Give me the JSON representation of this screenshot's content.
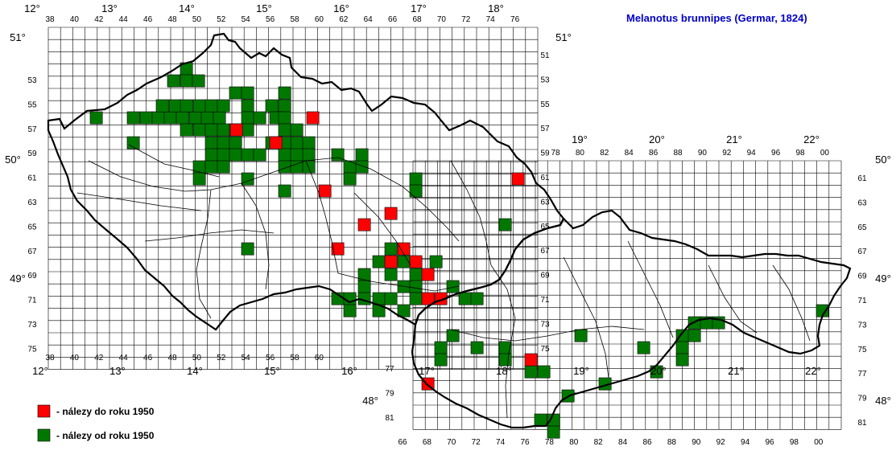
{
  "title": "Melanotus brunnipes (Germar, 1824)",
  "colors": {
    "pre1950": "#ff0000",
    "post1950": "#007800",
    "grid": "#000000",
    "border": "#000000"
  },
  "legend": [
    {
      "key": "pre1950",
      "label": "- nálezy do roku 1950"
    },
    {
      "key": "post1950",
      "label": "- nálezy od roku 1950"
    }
  ],
  "grid": {
    "column_labels_cz": [
      "38",
      "40",
      "42",
      "44",
      "46",
      "48",
      "50",
      "52",
      "54",
      "56",
      "58",
      "60",
      "62",
      "64",
      "66",
      "68",
      "70",
      "72",
      "74",
      "76"
    ],
    "column_labels_sk": [
      "66",
      "68",
      "70",
      "72",
      "74",
      "76",
      "78",
      "80",
      "82",
      "84",
      "86",
      "88",
      "90",
      "92",
      "94",
      "96",
      "98",
      "00"
    ],
    "column_labels_sk_top": [
      "78",
      "80",
      "82",
      "84",
      "86",
      "88",
      "90",
      "92",
      "94",
      "96",
      "98",
      "00"
    ],
    "row_labels_cz": [
      "51",
      "53",
      "55",
      "57",
      "59",
      "61",
      "63",
      "65",
      "67",
      "69",
      "71",
      "73",
      "75"
    ],
    "row_labels_sk": [
      "61",
      "63",
      "65",
      "67",
      "69",
      "71",
      "73",
      "75",
      "77",
      "79",
      "81"
    ],
    "row_labels_cz_left": [
      "53",
      "55",
      "57",
      "59",
      "61",
      "63",
      "65",
      "67",
      "69",
      "71",
      "73",
      "75"
    ]
  },
  "longitude_labels_top": [
    "12°",
    "13°",
    "14°",
    "15°",
    "16°",
    "17°",
    "18°"
  ],
  "longitude_labels_top_sk": [
    "19°",
    "20°",
    "21°",
    "22°"
  ],
  "longitude_labels_bottom": [
    "12°",
    "13°",
    "14°",
    "15°",
    "16°",
    "17°",
    "18°",
    "19°",
    "20°",
    "21°",
    "22°"
  ],
  "latitude_labels": {
    "lat51": "51°",
    "lat50": "50°",
    "lat49": "49°",
    "lat48": "48°"
  },
  "records": {
    "pre1950": [
      [
        76,
        1
      ],
      [
        76,
        2
      ],
      [
        61,
        3
      ],
      [
        110,
        3
      ],
      [
        107,
        4
      ],
      [
        133,
        6
      ],
      [
        72,
        7
      ],
      [
        62,
        9
      ],
      [
        113,
        10
      ],
      [
        114,
        10
      ],
      [
        90,
        11
      ],
      [
        121,
        12
      ],
      [
        105,
        13
      ],
      [
        106,
        13
      ],
      [
        92,
        15
      ]
    ],
    "post1950": [
      [
        44,
        0
      ],
      [
        40,
        1
      ],
      [
        41,
        1
      ],
      [
        42,
        1
      ],
      [
        39,
        2
      ],
      [
        40,
        2
      ],
      [
        41,
        2
      ],
      [
        42,
        2
      ],
      [
        46,
        2
      ],
      [
        47,
        2
      ],
      [
        51,
        2
      ],
      [
        37,
        3
      ],
      [
        38,
        3
      ],
      [
        39,
        3
      ],
      [
        40,
        3
      ],
      [
        41,
        3
      ],
      [
        42,
        3
      ],
      [
        52,
        3
      ],
      [
        33,
        4
      ],
      [
        35,
        4
      ],
      [
        36,
        4
      ],
      [
        37,
        4
      ],
      [
        40,
        4
      ],
      [
        41,
        4
      ],
      [
        42,
        4
      ],
      [
        43,
        4
      ],
      [
        45,
        4
      ],
      [
        46,
        4
      ],
      [
        48,
        4
      ],
      [
        49,
        4
      ],
      [
        53,
        4
      ],
      [
        54,
        4
      ],
      [
        55,
        4
      ],
      [
        56,
        4
      ],
      [
        57,
        4
      ],
      [
        58,
        4
      ],
      [
        62,
        4
      ],
      [
        73,
        4
      ],
      [
        74,
        4
      ],
      [
        79,
        4
      ],
      [
        80,
        4
      ],
      [
        81,
        4
      ],
      [
        61,
        5
      ],
      [
        62,
        5
      ],
      [
        63,
        5
      ],
      [
        86,
        5
      ],
      [
        54,
        6
      ],
      [
        55,
        6
      ],
      [
        71,
        6
      ],
      [
        72,
        6
      ],
      [
        73,
        6
      ],
      [
        44,
        7
      ],
      [
        45,
        7
      ],
      [
        54,
        7
      ],
      [
        55,
        7
      ],
      [
        58,
        7
      ],
      [
        60,
        7
      ],
      [
        62,
        7
      ],
      [
        64,
        7
      ],
      [
        65,
        7
      ],
      [
        66,
        7
      ],
      [
        67,
        7
      ],
      [
        68,
        7
      ],
      [
        69,
        7
      ],
      [
        70,
        7
      ],
      [
        71,
        7
      ],
      [
        72,
        7
      ],
      [
        73,
        7
      ],
      [
        74,
        7
      ],
      [
        75,
        7
      ],
      [
        76,
        7
      ],
      [
        77,
        7
      ],
      [
        78,
        7
      ],
      [
        79,
        7
      ],
      [
        89,
        7
      ],
      [
        90,
        7
      ],
      [
        91,
        7
      ],
      [
        92,
        7
      ],
      [
        94,
        7
      ],
      [
        103,
        7
      ],
      [
        104,
        7
      ],
      [
        121,
        7
      ],
      [
        122,
        7
      ],
      [
        137,
        7
      ],
      [
        138,
        7
      ],
      [
        145,
        7
      ],
      [
        146,
        7
      ],
      [
        148,
        7
      ],
      [
        150,
        7
      ],
      [
        154,
        7
      ],
      [
        155,
        7
      ],
      [
        156,
        7
      ],
      [
        161,
        7
      ],
      [
        162,
        7
      ],
      [
        180,
        7
      ],
      [
        181,
        7
      ],
      [
        182,
        7
      ],
      [
        183,
        7
      ],
      [
        186,
        7
      ],
      [
        188,
        7
      ],
      [
        223,
        7
      ],
      [
        229,
        7
      ],
      [
        231,
        7
      ],
      [
        234,
        7
      ],
      [
        236,
        7
      ],
      [
        237,
        7
      ],
      [
        242,
        7
      ],
      [
        249,
        7
      ],
      [
        250,
        7
      ],
      [
        254,
        7
      ],
      [
        255,
        7
      ]
    ]
  }
}
